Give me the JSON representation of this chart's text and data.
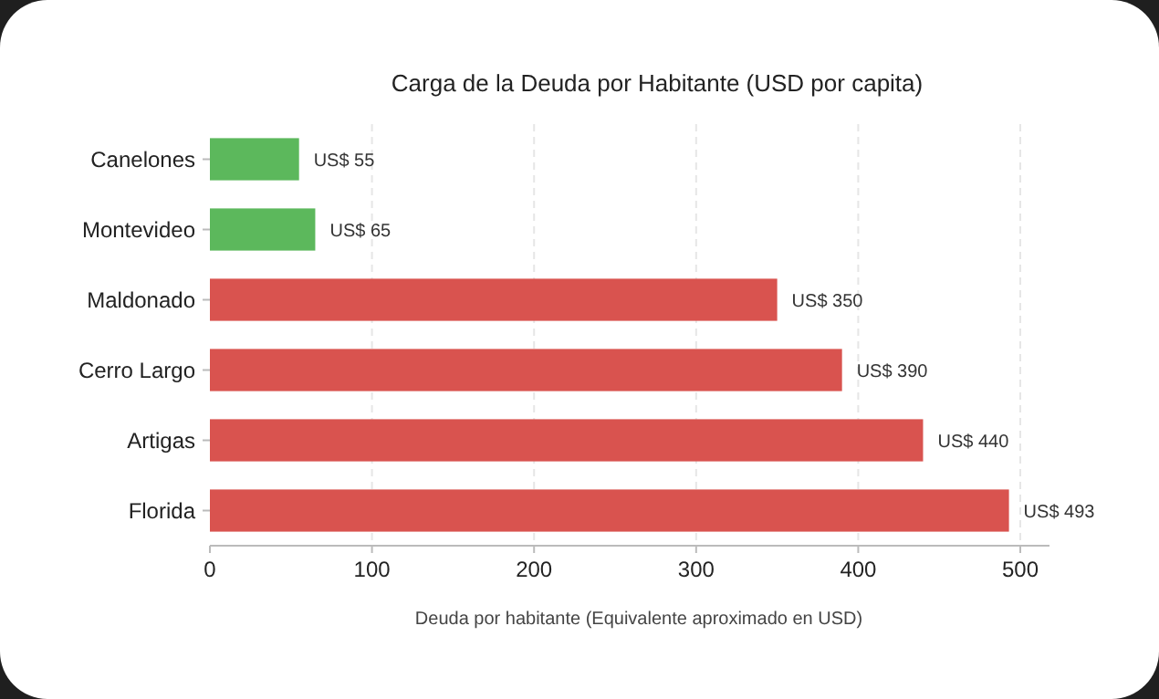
{
  "chart_data": {
    "type": "bar",
    "orientation": "horizontal",
    "title": "Carga de la Deuda por Habitante (USD por capita)",
    "xlabel": "Deuda por habitante (Equivalente aproximado en USD)",
    "categories": [
      "Canelones",
      "Montevideo",
      "Maldonado",
      "Cerro Largo",
      "Artigas",
      "Florida"
    ],
    "values": [
      55,
      65,
      350,
      390,
      440,
      493
    ],
    "colors": [
      "#5cb85c",
      "#5cb85c",
      "#d9534f",
      "#d9534f",
      "#d9534f",
      "#d9534f"
    ],
    "value_labels": [
      "US$ 55",
      "US$ 65",
      "US$ 350",
      "US$ 390",
      "US$ 440",
      "US$ 493"
    ],
    "xlim": [
      0,
      518
    ],
    "xticks": [
      0,
      100,
      200,
      300,
      400,
      500
    ],
    "grid": "x"
  }
}
